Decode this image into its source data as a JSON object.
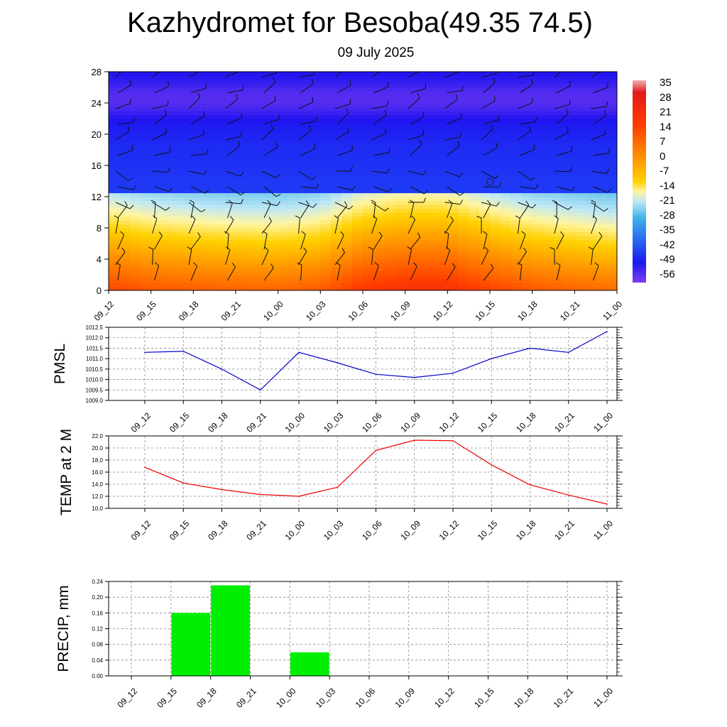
{
  "title": "Kazhydromet for Besoba(49.35 74.5)",
  "subtitle": "09 July 2025",
  "time_labels": [
    "09_12",
    "09_15",
    "09_18",
    "09_21",
    "10_00",
    "10_03",
    "10_06",
    "10_09",
    "10_12",
    "10_15",
    "10_18",
    "10_21",
    "11_00"
  ],
  "chart_data": [
    {
      "type": "heatmap",
      "description_field": "vertical temperature cross-section with wind barbs",
      "x": [
        "09_12",
        "09_15",
        "09_18",
        "09_21",
        "10_00",
        "10_03",
        "10_06",
        "10_09",
        "10_12",
        "10_15",
        "10_18",
        "10_21",
        "11_00"
      ],
      "ylim": [
        0,
        28
      ],
      "yticks": [
        0,
        4,
        8,
        12,
        16,
        20,
        24,
        28
      ],
      "colorbar_labels": [
        "35",
        "28",
        "21",
        "14",
        "7",
        "0",
        "-7",
        "-14",
        "-21",
        "-28",
        "-35",
        "-42",
        "-49",
        "-56"
      ],
      "colorbar_range": [
        -63,
        42
      ],
      "surface_temp_by_time": [
        16.8,
        14.2,
        13.1,
        12.3,
        12.0,
        13.5,
        19.5,
        21.3,
        21.2,
        17.2,
        13.8,
        12.2,
        10.8
      ],
      "lapse_rate_per_level": -2.6,
      "tropopause_level": 12.3,
      "upper_temp": [
        -55,
        -45
      ]
    },
    {
      "type": "line",
      "ylabel": "PMSL",
      "x": [
        "09_12",
        "09_15",
        "09_18",
        "09_21",
        "10_00",
        "10_03",
        "10_06",
        "10_09",
        "10_12",
        "10_15",
        "10_18",
        "10_21",
        "11_00"
      ],
      "values": [
        1011.3,
        1011.35,
        1010.5,
        1009.5,
        1011.3,
        1010.8,
        1010.25,
        1010.1,
        1010.3,
        1011.0,
        1011.5,
        1011.3,
        1012.3
      ],
      "ylim": [
        1009.0,
        1012.5
      ],
      "yticks": [
        "1009.0",
        "1009.5",
        "1010.0",
        "1010.5",
        "1011.0",
        "1011.5",
        "1012.0",
        "1012.5"
      ],
      "color": "#0000cc",
      "grid": true
    },
    {
      "type": "line",
      "ylabel": "TEMP at 2 M",
      "x": [
        "09_12",
        "09_15",
        "09_18",
        "09_21",
        "10_00",
        "10_03",
        "10_06",
        "10_09",
        "10_12",
        "10_15",
        "10_18",
        "10_21",
        "11_00"
      ],
      "values": [
        16.8,
        14.2,
        13.1,
        12.3,
        12.0,
        13.5,
        19.6,
        21.3,
        21.2,
        17.2,
        13.9,
        12.2,
        10.7
      ],
      "ylim": [
        10.0,
        22.0
      ],
      "yticks": [
        "10.0",
        "12.0",
        "14.0",
        "16.0",
        "18.0",
        "20.0",
        "22.0"
      ],
      "color": "#ee0000",
      "grid": true
    },
    {
      "type": "bar",
      "ylabel": "PRECIP, mm",
      "x": [
        "09_12",
        "09_15",
        "09_18",
        "09_21",
        "10_00",
        "10_03",
        "10_06",
        "10_09",
        "10_12",
        "10_15",
        "10_18",
        "10_21",
        "11_00"
      ],
      "values": [
        0,
        0,
        0.16,
        0.23,
        0,
        0.06,
        0,
        0,
        0,
        0,
        0,
        0,
        0
      ],
      "ylim": [
        0,
        0.24
      ],
      "yticks": [
        "0.00",
        "0.04",
        "0.08",
        "0.12",
        "0.16",
        "0.20",
        "0.24"
      ],
      "color": "#00ee00",
      "grid": true
    }
  ]
}
